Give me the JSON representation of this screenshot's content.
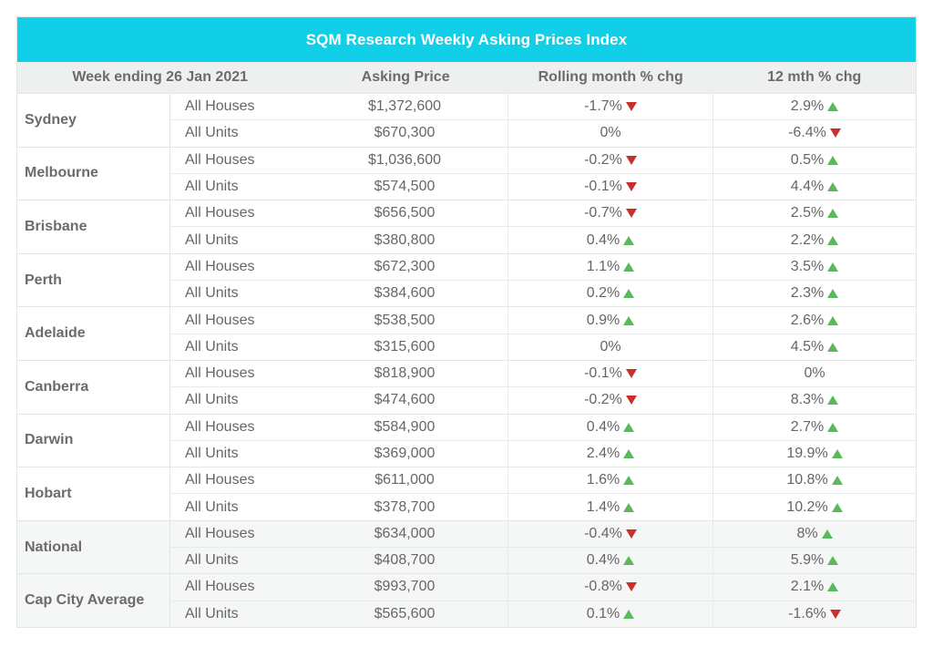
{
  "title": "SQM Research Weekly Asking Prices Index",
  "headers": {
    "week": "Week ending 26 Jan 2021",
    "price": "Asking Price",
    "rolling": "Rolling month % chg",
    "yoy": "12 mth % chg"
  },
  "colors": {
    "title_bg": "#12cfe8",
    "up": "#5cb85c",
    "down": "#c9302c"
  },
  "groups": [
    {
      "name": "Sydney",
      "rows": [
        {
          "type": "All Houses",
          "price": "$1,372,600",
          "roll": "-1.7%",
          "roll_dir": "down",
          "yoy": "2.9%",
          "yoy_dir": "up"
        },
        {
          "type": "All Units",
          "price": "$670,300",
          "roll": "0%",
          "roll_dir": "none",
          "yoy": "-6.4%",
          "yoy_dir": "down"
        }
      ]
    },
    {
      "name": "Melbourne",
      "rows": [
        {
          "type": "All Houses",
          "price": "$1,036,600",
          "roll": "-0.2%",
          "roll_dir": "down",
          "yoy": "0.5%",
          "yoy_dir": "up"
        },
        {
          "type": "All Units",
          "price": "$574,500",
          "roll": "-0.1%",
          "roll_dir": "down",
          "yoy": "4.4%",
          "yoy_dir": "up"
        }
      ]
    },
    {
      "name": "Brisbane",
      "rows": [
        {
          "type": "All Houses",
          "price": "$656,500",
          "roll": "-0.7%",
          "roll_dir": "down",
          "yoy": "2.5%",
          "yoy_dir": "up"
        },
        {
          "type": "All Units",
          "price": "$380,800",
          "roll": "0.4%",
          "roll_dir": "up",
          "yoy": "2.2%",
          "yoy_dir": "up"
        }
      ]
    },
    {
      "name": "Perth",
      "rows": [
        {
          "type": "All Houses",
          "price": "$672,300",
          "roll": "1.1%",
          "roll_dir": "up",
          "yoy": "3.5%",
          "yoy_dir": "up"
        },
        {
          "type": "All Units",
          "price": "$384,600",
          "roll": "0.2%",
          "roll_dir": "up",
          "yoy": "2.3%",
          "yoy_dir": "up"
        }
      ]
    },
    {
      "name": "Adelaide",
      "rows": [
        {
          "type": "All Houses",
          "price": "$538,500",
          "roll": "0.9%",
          "roll_dir": "up",
          "yoy": "2.6%",
          "yoy_dir": "up"
        },
        {
          "type": "All Units",
          "price": "$315,600",
          "roll": "0%",
          "roll_dir": "none",
          "yoy": "4.5%",
          "yoy_dir": "up"
        }
      ]
    },
    {
      "name": "Canberra",
      "rows": [
        {
          "type": "All Houses",
          "price": "$818,900",
          "roll": "-0.1%",
          "roll_dir": "down",
          "yoy": "0%",
          "yoy_dir": "none"
        },
        {
          "type": "All Units",
          "price": "$474,600",
          "roll": "-0.2%",
          "roll_dir": "down",
          "yoy": "8.3%",
          "yoy_dir": "up"
        }
      ]
    },
    {
      "name": "Darwin",
      "rows": [
        {
          "type": "All Houses",
          "price": "$584,900",
          "roll": "0.4%",
          "roll_dir": "up",
          "yoy": "2.7%",
          "yoy_dir": "up"
        },
        {
          "type": "All Units",
          "price": "$369,000",
          "roll": "2.4%",
          "roll_dir": "up",
          "yoy": "19.9%",
          "yoy_dir": "up"
        }
      ]
    },
    {
      "name": "Hobart",
      "rows": [
        {
          "type": "All Houses",
          "price": "$611,000",
          "roll": "1.6%",
          "roll_dir": "up",
          "yoy": "10.8%",
          "yoy_dir": "up"
        },
        {
          "type": "All Units",
          "price": "$378,700",
          "roll": "1.4%",
          "roll_dir": "up",
          "yoy": "10.2%",
          "yoy_dir": "up"
        }
      ]
    },
    {
      "name": "National",
      "shaded": true,
      "rows": [
        {
          "type": "All Houses",
          "price": "$634,000",
          "roll": "-0.4%",
          "roll_dir": "down",
          "yoy": "8%",
          "yoy_dir": "up"
        },
        {
          "type": "All Units",
          "price": "$408,700",
          "roll": "0.4%",
          "roll_dir": "up",
          "yoy": "5.9%",
          "yoy_dir": "up"
        }
      ]
    },
    {
      "name": "Cap City Average",
      "shaded": true,
      "rows": [
        {
          "type": "All Houses",
          "price": "$993,700",
          "roll": "-0.8%",
          "roll_dir": "down",
          "yoy": "2.1%",
          "yoy_dir": "up"
        },
        {
          "type": "All Units",
          "price": "$565,600",
          "roll": "0.1%",
          "roll_dir": "up",
          "yoy": "-1.6%",
          "yoy_dir": "down"
        }
      ]
    }
  ]
}
